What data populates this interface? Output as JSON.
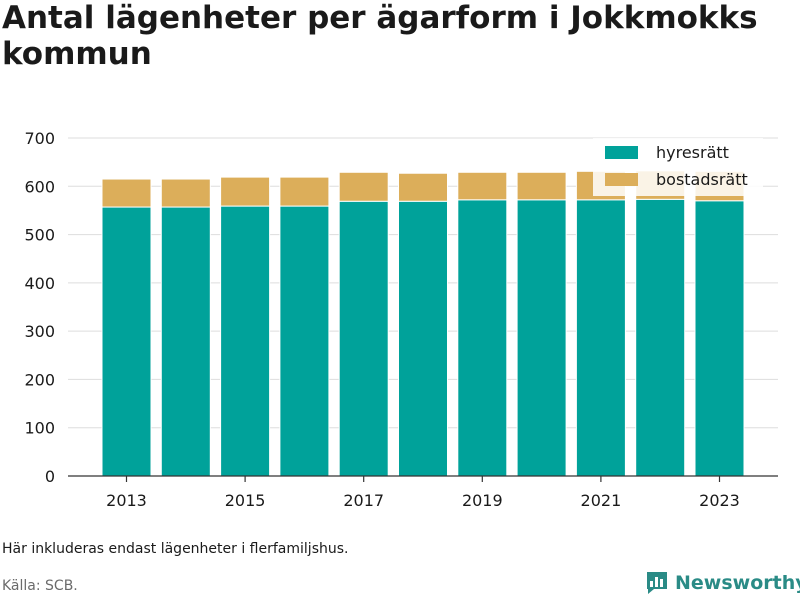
{
  "title": "Antal lägenheter per ägarform i Jokkmokks kommun",
  "note": "Här inkluderas endast lägenheter i flerfamiljshus.",
  "source": "Källa: SCB.",
  "brand": "Newsworthy",
  "colors": {
    "hyresratt": "#00a29a",
    "bostadsratt": "#dcae5a",
    "grid": "#dddddd",
    "axis": "#333333",
    "brand": "#2a8b86"
  },
  "chart_data": {
    "type": "bar",
    "stacked": true,
    "categories": [
      "2013",
      "2014",
      "2015",
      "2016",
      "2017",
      "2018",
      "2019",
      "2020",
      "2021",
      "2022",
      "2023"
    ],
    "x_tick_labels": [
      "2013",
      "2015",
      "2017",
      "2019",
      "2021",
      "2023"
    ],
    "series": [
      {
        "name": "hyresrätt",
        "values": [
          557,
          557,
          559,
          559,
          569,
          569,
          572,
          572,
          572,
          573,
          570
        ]
      },
      {
        "name": "bostadsrätt",
        "values": [
          58,
          58,
          60,
          60,
          60,
          58,
          57,
          57,
          59,
          59,
          61
        ]
      }
    ],
    "ylim": [
      0,
      700
    ],
    "y_ticks": [
      0,
      100,
      200,
      300,
      400,
      500,
      600,
      700
    ],
    "grid": true,
    "legend_position": "top-right",
    "xlabel": "",
    "ylabel": ""
  }
}
